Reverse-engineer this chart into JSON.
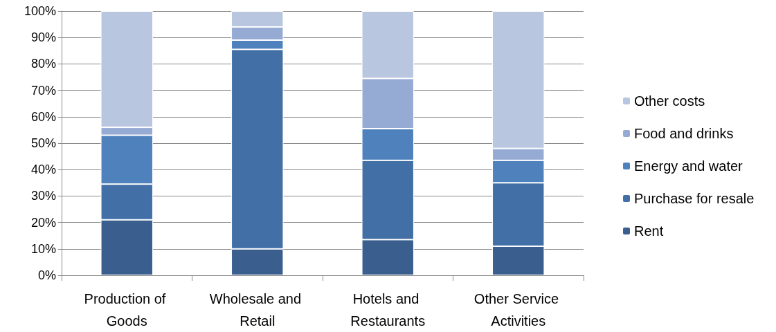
{
  "chart_data": {
    "type": "bar",
    "stacked": true,
    "categories": [
      "Production of Goods",
      "Wholesale and Retail",
      "Hotels and Restaurants",
      "Other Service Activities"
    ],
    "series": [
      {
        "name": "Rent",
        "color": "#3a5f8e",
        "values": [
          21,
          10,
          13.5,
          11
        ]
      },
      {
        "name": "Purchase for resale",
        "color": "#4270a6",
        "values": [
          13.5,
          75.5,
          30,
          24
        ]
      },
      {
        "name": "Energy and water",
        "color": "#4f81bd",
        "values": [
          18.5,
          3.5,
          12,
          8.5
        ]
      },
      {
        "name": "Food and drinks",
        "color": "#95abd4",
        "values": [
          3,
          5,
          19,
          4.5
        ]
      },
      {
        "name": "Other costs",
        "color": "#b9c6e0",
        "values": [
          44,
          6,
          25.5,
          52
        ]
      }
    ],
    "ylim": [
      0,
      100
    ],
    "yticks": [
      {
        "value": 0,
        "label": "0%"
      },
      {
        "value": 10,
        "label": "10%"
      },
      {
        "value": 20,
        "label": "20%"
      },
      {
        "value": 30,
        "label": "30%"
      },
      {
        "value": 40,
        "label": "40%"
      },
      {
        "value": 50,
        "label": "50%"
      },
      {
        "value": 60,
        "label": "60%"
      },
      {
        "value": 70,
        "label": "70%"
      },
      {
        "value": 80,
        "label": "80%"
      },
      {
        "value": 90,
        "label": "90%"
      },
      {
        "value": 100,
        "label": "100%"
      }
    ],
    "grid": "y",
    "legend": "right"
  }
}
